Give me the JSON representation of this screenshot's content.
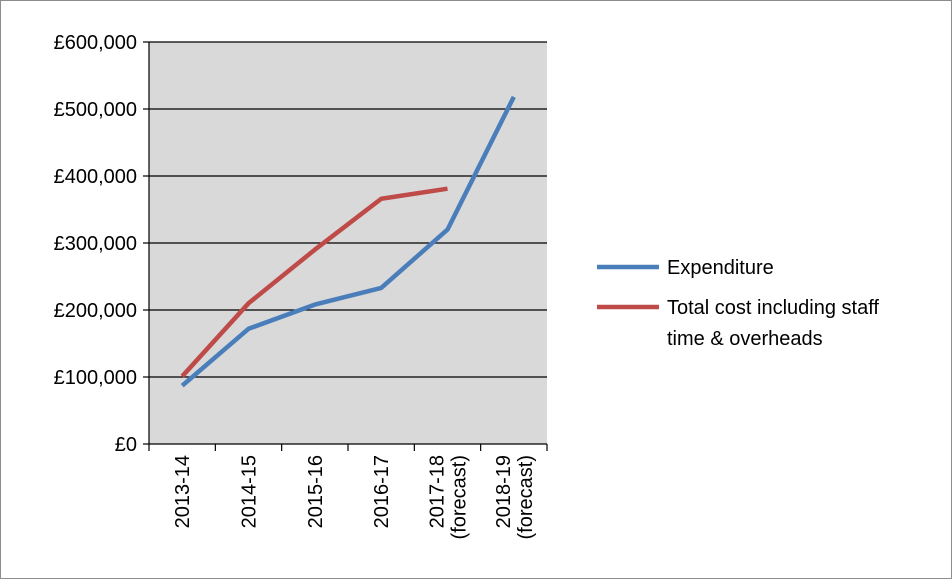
{
  "chart_data": {
    "type": "line",
    "title": "",
    "xlabel": "",
    "ylabel": "",
    "categories": [
      [
        "2013-14"
      ],
      [
        "2014-15"
      ],
      [
        "2015-16"
      ],
      [
        "2016-17"
      ],
      [
        "2017-18",
        "(forecast)"
      ],
      [
        "2018-19",
        "(forecast)"
      ]
    ],
    "ylim": [
      0,
      600000
    ],
    "yticks": [
      0,
      100000,
      200000,
      300000,
      400000,
      500000,
      600000
    ],
    "ytick_labels": [
      "£0",
      "£100,000",
      "£200,000",
      "£300,000",
      "£400,000",
      "£500,000",
      "£600,000"
    ],
    "grid": "horizontal major gridlines",
    "plot_background": "#d9d9d9",
    "legend_position": "right",
    "series": [
      {
        "name": "Expenditure",
        "color": "#4a7ebb",
        "values": [
          87000,
          172000,
          208000,
          233000,
          320000,
          518000
        ]
      },
      {
        "name": "Total cost including staff time & overheads",
        "name_lines": [
          "Total cost including staff",
          "time & overheads"
        ],
        "color": "#be4b48",
        "values": [
          101000,
          210000,
          290000,
          366000,
          381000,
          null
        ]
      }
    ]
  }
}
